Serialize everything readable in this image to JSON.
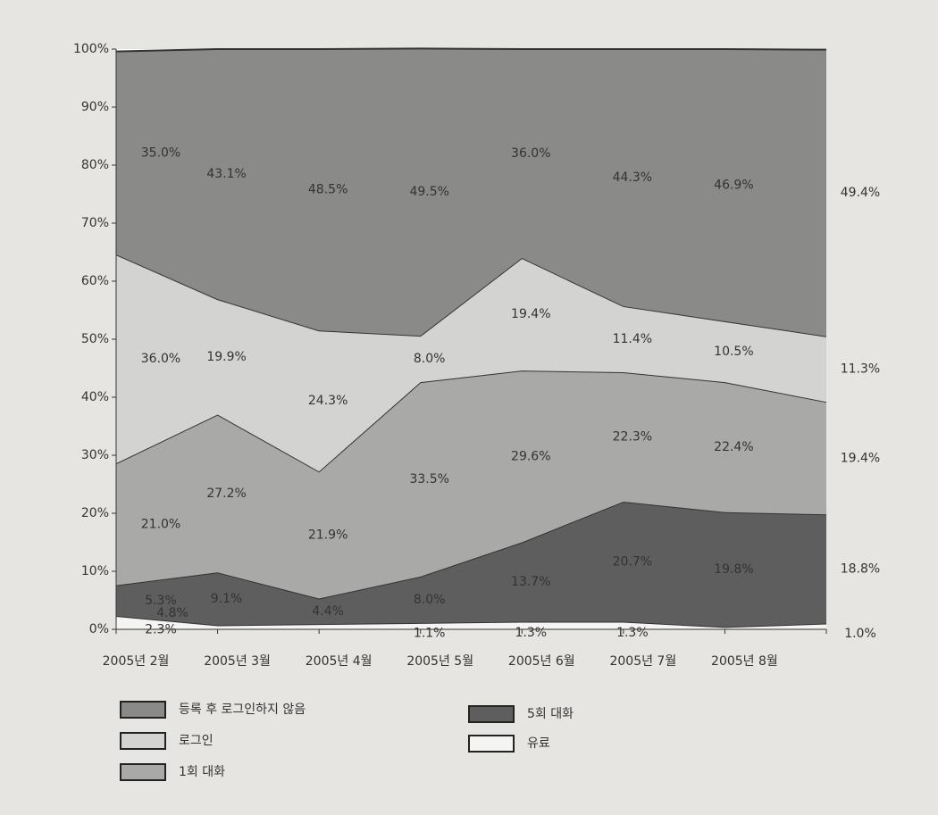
{
  "chart_data": {
    "type": "stacked_area",
    "categories": [
      "2005년 2월",
      "2005년 3월",
      "2005년 4월",
      "2005년 5월",
      "2005년 6월",
      "2005년 7월",
      "2005년 8월",
      null
    ],
    "ylim": [
      0,
      100
    ],
    "yticks": [
      {
        "value": 0,
        "label": "0%"
      },
      {
        "value": 10,
        "label": "10%"
      },
      {
        "value": 20,
        "label": "20%"
      },
      {
        "value": 30,
        "label": "30%"
      },
      {
        "value": 40,
        "label": "40%"
      },
      {
        "value": 50,
        "label": "50%"
      },
      {
        "value": 60,
        "label": "60%"
      },
      {
        "value": 70,
        "label": "70%"
      },
      {
        "value": 80,
        "label": "80%"
      },
      {
        "value": 90,
        "label": "90%"
      },
      {
        "value": 100,
        "label": "100%"
      }
    ],
    "series": [
      {
        "name": "유료",
        "color": "#f4f4f2",
        "values": [
          2.3,
          0.7,
          0.9,
          1.1,
          1.3,
          1.3,
          0.4,
          1.0
        ],
        "value_labels": [
          "2.3%",
          null,
          null,
          "1.1%",
          "1.3%",
          "1.3%",
          null,
          "1.0%"
        ]
      },
      {
        "name": "5회 대화",
        "color": "#5e5e5e",
        "values": [
          5.3,
          9.1,
          4.4,
          8.0,
          13.7,
          20.7,
          19.8,
          18.8
        ],
        "value_labels": [
          "5.3%",
          "9.1%",
          "4.4%",
          "8.0%",
          "13.7%",
          "20.7%",
          "19.8%",
          "18.8%"
        ]
      },
      {
        "name": "1회 대화",
        "color": "#a9a9a7",
        "values": [
          21.0,
          27.2,
          21.9,
          33.5,
          29.6,
          22.3,
          22.4,
          19.4
        ],
        "value_labels": [
          "21.0%",
          "27.2%",
          "21.9%",
          "33.5%",
          "29.6%",
          "22.3%",
          "22.4%",
          "19.4%"
        ]
      },
      {
        "name": "로그인",
        "color": "#d3d3d1",
        "values": [
          36.0,
          19.9,
          24.3,
          8.0,
          19.4,
          11.4,
          10.5,
          11.3
        ],
        "value_labels": [
          "36.0%",
          "19.9%",
          "24.3%",
          "8.0%",
          "19.4%",
          "11.4%",
          "10.5%",
          "11.3%"
        ]
      },
      {
        "name": "등록 후 로그인하지 않음",
        "color": "#8a8a88",
        "values": [
          35.0,
          43.1,
          48.5,
          49.5,
          36.0,
          44.3,
          46.9,
          49.4
        ],
        "value_labels": [
          "35.0%",
          "43.1%",
          "48.5%",
          "49.5%",
          "36.0%",
          "44.3%",
          "46.9%",
          "49.4%"
        ]
      }
    ],
    "annotations": [
      "4.8%"
    ]
  }
}
